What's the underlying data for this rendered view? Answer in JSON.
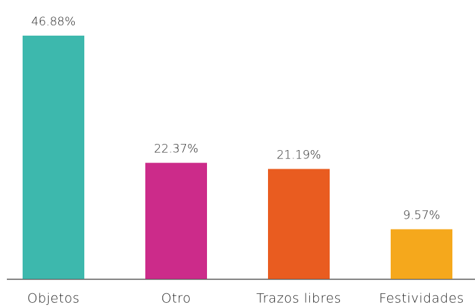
{
  "chart_data": {
    "type": "bar",
    "categories": [
      "Objetos",
      "Otro",
      "Trazos libres",
      "Festividades"
    ],
    "values": [
      46.88,
      22.37,
      21.19,
      9.57
    ],
    "value_labels": [
      "46.88%",
      "22.37%",
      "21.19%",
      "9.57%"
    ],
    "colors": [
      "#3db8ad",
      "#cc2b8a",
      "#e95c20",
      "#f5a81c"
    ]
  }
}
